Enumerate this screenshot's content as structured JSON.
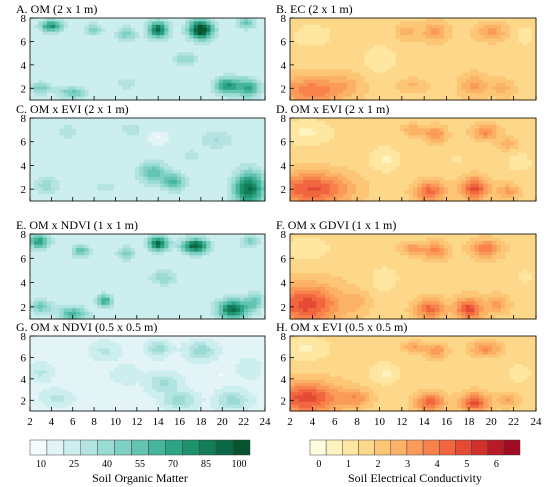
{
  "chart_data": {
    "type": "heatmap",
    "x_ticks": [
      "2",
      "4",
      "6",
      "8",
      "10",
      "12",
      "14",
      "16",
      "18",
      "20",
      "22",
      "24"
    ],
    "y_ticks": [
      "2",
      "4",
      "6",
      "8"
    ],
    "xlim": [
      2,
      24
    ],
    "ylim": [
      1,
      8
    ],
    "grid": false,
    "colorbars": [
      {
        "id": "om",
        "label": "Soil Organic Matter",
        "ticks": [
          "10",
          "25",
          "40",
          "55",
          "70",
          "85",
          "100"
        ],
        "range": [
          5,
          105
        ],
        "colors": [
          "#f4fbfd",
          "#e3f4f6",
          "#cdeeee",
          "#b4e4e2",
          "#9adbd4",
          "#7fd0c4",
          "#62c4b1",
          "#45b59c",
          "#2ea484",
          "#1d926d",
          "#127d58",
          "#0b6844",
          "#06542f"
        ]
      },
      {
        "id": "ec",
        "label": "Soil Electrical Conductivity",
        "ticks": [
          "0",
          "1",
          "2",
          "3",
          "4",
          "5",
          "6"
        ],
        "range": [
          -0.3,
          6.8
        ],
        "colors": [
          "#fffde0",
          "#fff4c0",
          "#ffe7a1",
          "#fed88a",
          "#fdc676",
          "#fcb266",
          "#fa9b58",
          "#f7824b",
          "#f1663f",
          "#e44a34",
          "#d0312b",
          "#b81b26",
          "#9d0c22"
        ]
      }
    ],
    "panels": [
      {
        "id": "A",
        "title": "A. OM (2 x 1 m)",
        "scale": "om",
        "base": 22,
        "hot": [
          [
            4,
            7.3,
            1.0,
            0.5,
            55
          ],
          [
            8,
            7.0,
            0.8,
            0.5,
            25
          ],
          [
            11,
            6.6,
            0.9,
            0.6,
            25
          ],
          [
            14,
            7.0,
            0.9,
            0.7,
            70
          ],
          [
            18,
            7.0,
            1.1,
            0.8,
            90
          ],
          [
            22.2,
            7.6,
            0.8,
            0.5,
            30
          ],
          [
            16.5,
            4.5,
            1.0,
            0.6,
            22
          ],
          [
            3,
            2.0,
            1.0,
            0.5,
            28
          ],
          [
            6,
            1.6,
            1.2,
            0.5,
            32
          ],
          [
            20.5,
            2.2,
            1.2,
            0.7,
            55
          ],
          [
            22.5,
            2.0,
            1.0,
            0.8,
            45
          ],
          [
            11,
            2.4,
            1.0,
            0.5,
            12
          ]
        ]
      },
      {
        "id": "B",
        "title": "B. EC (2 x 1 m)",
        "scale": "ec",
        "base": 1.7,
        "hot": [
          [
            4,
            1.8,
            3.0,
            1.2,
            2.2
          ],
          [
            7,
            2.4,
            1.4,
            0.9,
            0.6
          ],
          [
            12.5,
            6.8,
            1.0,
            0.7,
            1.0
          ],
          [
            15,
            6.8,
            1.1,
            0.8,
            1.5
          ],
          [
            20,
            6.8,
            1.3,
            0.7,
            1.5
          ],
          [
            18.5,
            2.2,
            1.2,
            0.9,
            1.5
          ],
          [
            21,
            2.0,
            1.0,
            0.7,
            1.0
          ],
          [
            13,
            2.2,
            1.2,
            0.6,
            0.8
          ],
          [
            10,
            4.5,
            1.5,
            1.2,
            -0.9
          ],
          [
            4,
            6.5,
            2.0,
            1.1,
            -0.7
          ],
          [
            23,
            6.5,
            1.0,
            1.0,
            -0.6
          ]
        ]
      },
      {
        "id": "C",
        "title": "C. OM x EVI (2 x 1 m)",
        "scale": "om",
        "base": 22,
        "hot": [
          [
            13.5,
            3.4,
            1.3,
            0.9,
            35
          ],
          [
            15.5,
            2.6,
            1.0,
            0.7,
            40
          ],
          [
            22.5,
            2.0,
            1.4,
            1.4,
            70
          ],
          [
            3.5,
            2.3,
            1.2,
            0.7,
            18
          ],
          [
            9,
            2.2,
            1.2,
            0.5,
            10
          ],
          [
            5.5,
            6.8,
            1.0,
            0.6,
            12
          ],
          [
            11.5,
            7.0,
            1.0,
            0.6,
            12
          ],
          [
            19.5,
            6.2,
            1.5,
            0.8,
            14
          ],
          [
            14,
            6.3,
            0.8,
            0.5,
            -10
          ],
          [
            17,
            4.8,
            1.2,
            0.8,
            8
          ]
        ]
      },
      {
        "id": "D",
        "title": "D. OM x EVI (2 x 1 m)",
        "scale": "ec",
        "base": 1.6,
        "hot": [
          [
            4,
            2.0,
            3.4,
            1.4,
            3.1
          ],
          [
            13,
            7.0,
            0.9,
            0.5,
            1.3
          ],
          [
            15,
            6.6,
            1.0,
            0.7,
            2.0
          ],
          [
            19.5,
            6.8,
            1.2,
            0.7,
            2.0
          ],
          [
            21.5,
            5.8,
            0.8,
            0.6,
            1.2
          ],
          [
            14.5,
            1.8,
            1.4,
            0.9,
            2.7
          ],
          [
            18.5,
            2.0,
            1.2,
            1.0,
            3.2
          ],
          [
            21.5,
            1.8,
            1.0,
            0.7,
            1.6
          ],
          [
            10.5,
            4.5,
            1.3,
            1.0,
            -0.9
          ],
          [
            3.5,
            6.8,
            2.2,
            1.0,
            -0.9
          ],
          [
            22.5,
            4.3,
            1.2,
            1.0,
            -0.5
          ],
          [
            17,
            4.5,
            1.2,
            0.8,
            -0.3
          ]
        ]
      },
      {
        "id": "E",
        "title": "E. OM x NDVI (1 x 1 m)",
        "scale": "om",
        "base": 22,
        "hot": [
          [
            2.8,
            7.4,
            1.0,
            0.6,
            50
          ],
          [
            6.8,
            6.6,
            0.8,
            0.5,
            35
          ],
          [
            11,
            6.4,
            0.8,
            0.5,
            28
          ],
          [
            14,
            7.2,
            0.9,
            0.6,
            70
          ],
          [
            17.5,
            7.0,
            1.2,
            0.6,
            75
          ],
          [
            22.5,
            7.4,
            0.8,
            0.5,
            25
          ],
          [
            3,
            2.0,
            1.0,
            0.5,
            32
          ],
          [
            6,
            1.4,
            1.3,
            0.6,
            40
          ],
          [
            9,
            2.5,
            0.7,
            0.5,
            45
          ],
          [
            21,
            1.8,
            1.4,
            0.8,
            70
          ],
          [
            23,
            2.4,
            0.8,
            0.7,
            30
          ],
          [
            14.5,
            4.4,
            1.2,
            0.6,
            20
          ]
        ]
      },
      {
        "id": "F",
        "title": "F. OM x GDVI (1 x 1 m)",
        "scale": "ec",
        "base": 1.7,
        "hot": [
          [
            3.5,
            2.2,
            3.0,
            1.6,
            3.2
          ],
          [
            8,
            2.4,
            1.0,
            0.8,
            0.8
          ],
          [
            13,
            6.8,
            1.0,
            0.5,
            1.6
          ],
          [
            15,
            6.6,
            1.0,
            0.7,
            2.0
          ],
          [
            19.5,
            6.8,
            1.3,
            0.7,
            2.2
          ],
          [
            14.5,
            1.8,
            1.3,
            0.8,
            2.6
          ],
          [
            18,
            1.8,
            1.2,
            0.9,
            3.2
          ],
          [
            20.5,
            2.2,
            1.0,
            0.7,
            1.5
          ],
          [
            10.5,
            4.3,
            1.2,
            1.0,
            -0.9
          ],
          [
            3.5,
            6.8,
            2.0,
            1.0,
            -0.9
          ],
          [
            23,
            4.5,
            1.0,
            1.0,
            -0.5
          ]
        ]
      },
      {
        "id": "G",
        "title": "G. OM x NDVI (0.5 x 0.5 m)",
        "scale": "om",
        "base": 18,
        "hot": [
          [
            9,
            6.6,
            1.3,
            0.8,
            12
          ],
          [
            14,
            6.8,
            1.0,
            0.7,
            22
          ],
          [
            18,
            6.6,
            1.3,
            0.8,
            25
          ],
          [
            14.5,
            3.6,
            1.4,
            0.9,
            20
          ],
          [
            16,
            2.0,
            1.5,
            0.8,
            22
          ],
          [
            21,
            2.0,
            1.4,
            0.9,
            22
          ],
          [
            4.5,
            2.2,
            1.3,
            0.8,
            12
          ],
          [
            3,
            4.6,
            1.0,
            0.8,
            12
          ],
          [
            11,
            4.4,
            1.3,
            0.9,
            8
          ],
          [
            22.5,
            5.0,
            1.0,
            0.9,
            10
          ],
          [
            20,
            4.4,
            0.8,
            0.6,
            -6
          ]
        ]
      },
      {
        "id": "H",
        "title": "H. OM x EVI (0.5 x 0.5 m)",
        "scale": "ec",
        "base": 1.6,
        "hot": [
          [
            3.5,
            2.2,
            3.2,
            1.5,
            3.3
          ],
          [
            8,
            2.2,
            1.2,
            0.8,
            1.5
          ],
          [
            13,
            7.0,
            0.9,
            0.5,
            1.4
          ],
          [
            15,
            6.6,
            1.0,
            0.7,
            1.9
          ],
          [
            19.5,
            6.8,
            1.3,
            0.7,
            2.0
          ],
          [
            14.5,
            1.8,
            1.3,
            0.9,
            2.8
          ],
          [
            18.5,
            1.8,
            1.3,
            0.9,
            3.2
          ],
          [
            21.5,
            2.0,
            1.0,
            0.7,
            1.4
          ],
          [
            10.5,
            4.5,
            1.3,
            1.0,
            -0.9
          ],
          [
            3.5,
            6.8,
            2.0,
            1.0,
            -0.9
          ],
          [
            22.5,
            4.5,
            1.2,
            1.0,
            -0.5
          ]
        ]
      }
    ]
  }
}
